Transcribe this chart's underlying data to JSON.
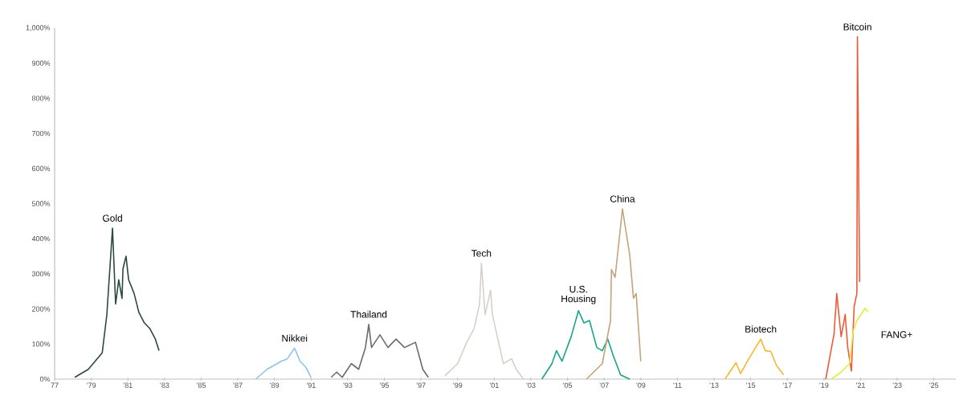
{
  "chart_data": {
    "type": "line",
    "xlim": [
      1977,
      2026.2
    ],
    "xticks": [
      {
        "value": 1977,
        "label": "77"
      },
      {
        "value": 1979,
        "label": "’79"
      },
      {
        "value": 1981,
        "label": "’81"
      },
      {
        "value": 1983,
        "label": "’83"
      },
      {
        "value": 1985,
        "label": "’85"
      },
      {
        "value": 1987,
        "label": "’87"
      },
      {
        "value": 1989,
        "label": "’89"
      },
      {
        "value": 1991,
        "label": "’91"
      },
      {
        "value": 1993,
        "label": "’93"
      },
      {
        "value": 1995,
        "label": "’95"
      },
      {
        "value": 1997,
        "label": "’97"
      },
      {
        "value": 1999,
        "label": "’99"
      },
      {
        "value": 2001,
        "label": "’01"
      },
      {
        "value": 2003,
        "label": "’03"
      },
      {
        "value": 2005,
        "label": "’05"
      },
      {
        "value": 2007,
        "label": "’07"
      },
      {
        "value": 2009,
        "label": "’09"
      },
      {
        "value": 2011,
        "label": "’11"
      },
      {
        "value": 2013,
        "label": "’13"
      },
      {
        "value": 2015,
        "label": "’15"
      },
      {
        "value": 2017,
        "label": "’17"
      },
      {
        "value": 2019,
        "label": "’19"
      },
      {
        "value": 2021,
        "label": "’21"
      },
      {
        "value": 2023,
        "label": "’23"
      },
      {
        "value": 2025,
        "label": "’25"
      }
    ],
    "ylim": [
      0,
      1000
    ],
    "yticks": [
      {
        "value": 0,
        "label": "0%"
      },
      {
        "value": 100,
        "label": "100%"
      },
      {
        "value": 200,
        "label": "200%"
      },
      {
        "value": 300,
        "label": "300%"
      },
      {
        "value": 400,
        "label": "400%"
      },
      {
        "value": 500,
        "label": "500%"
      },
      {
        "value": 600,
        "label": "600%"
      },
      {
        "value": 700,
        "label": "700%"
      },
      {
        "value": 800,
        "label": "800%"
      },
      {
        "value": 900,
        "label": "900%"
      },
      {
        "value": 1000,
        "label": "1,000%"
      }
    ],
    "series": [
      {
        "name": "Gold",
        "color": "#2b4a3c",
        "x": [
          1978.1,
          1978.84,
          1979.6,
          1979.85,
          1980.16,
          1980.33,
          1980.5,
          1980.68,
          1980.73,
          1980.9,
          1981.04,
          1981.34,
          1981.6,
          1981.9,
          1982.2,
          1982.5,
          1982.7
        ],
        "values": [
          5,
          28,
          75,
          183,
          430,
          214,
          283,
          230,
          314,
          350,
          283,
          244,
          190,
          160,
          144,
          114,
          81
        ]
      },
      {
        "name": "Nikkei",
        "color": "#8cc4ea",
        "x": [
          1987.97,
          1988.6,
          1989.37,
          1989.7,
          1990.1,
          1990.4,
          1990.7,
          1991.0
        ],
        "values": [
          0,
          28,
          51,
          58,
          88,
          51,
          35,
          5
        ]
      },
      {
        "name": "Thailand",
        "color": "#6b6b6b",
        "x": [
          1992.1,
          1992.4,
          1992.7,
          1993.2,
          1993.6,
          1993.97,
          1994.15,
          1994.3,
          1994.76,
          1995.2,
          1995.64,
          1996.1,
          1996.7,
          1997.1,
          1997.4
        ],
        "values": [
          5,
          20,
          5,
          44,
          28,
          90,
          156,
          90,
          126,
          90,
          114,
          90,
          105,
          28,
          5
        ]
      },
      {
        "name": "Tech",
        "color": "#d6d0ca",
        "x": [
          1998.3,
          1999.0,
          1999.5,
          1999.9,
          2000.2,
          2000.3,
          2000.5,
          2000.8,
          2000.9,
          2001.2,
          2001.5,
          2001.95,
          2002.2,
          2002.6
        ],
        "values": [
          9,
          44,
          105,
          144,
          214,
          330,
          184,
          253,
          184,
          114,
          44,
          58,
          28,
          0
        ]
      },
      {
        "name": "U.S. Housing",
        "color": "#17a386",
        "x": [
          2003.6,
          2004.15,
          2004.4,
          2004.7,
          2005.2,
          2005.6,
          2005.9,
          2006.2,
          2006.6,
          2006.9,
          2007.2,
          2007.5,
          2007.9,
          2008.4
        ],
        "values": [
          0,
          44,
          81,
          51,
          121,
          195,
          160,
          167,
          90,
          81,
          114,
          67,
          12,
          0
        ]
      },
      {
        "name": "China",
        "color": "#c4a27c",
        "x": [
          2006.03,
          2006.9,
          2007.35,
          2007.4,
          2007.6,
          2008.0,
          2008.4,
          2008.6,
          2008.75,
          2009.0
        ],
        "values": [
          0,
          44,
          167,
          312,
          290,
          485,
          353,
          230,
          244,
          51
        ]
      },
      {
        "name": "Biotech",
        "color": "#f5b731",
        "x": [
          2013.6,
          2014.2,
          2014.45,
          2014.9,
          2015.55,
          2015.8,
          2016.1,
          2016.4,
          2016.8
        ],
        "values": [
          0,
          47,
          16,
          58,
          114,
          81,
          79,
          40,
          12
        ]
      },
      {
        "name": "Bitcoin",
        "color": "#ef5a3a",
        "x": [
          2019.1,
          2019.55,
          2019.7,
          2019.94,
          2020.16,
          2020.3,
          2020.5,
          2020.65,
          2020.8,
          2020.83,
          2020.95
        ],
        "values": [
          0,
          128,
          244,
          121,
          184,
          90,
          23,
          207,
          244,
          975,
          277
        ]
      },
      {
        "name": "FANG+",
        "color": "#e3ec3c",
        "x": [
          2019.4,
          2019.94,
          2020.4,
          2020.6,
          2020.8,
          2021.25,
          2021.4
        ],
        "values": [
          0,
          20,
          44,
          137,
          167,
          202,
          191
        ]
      }
    ]
  }
}
